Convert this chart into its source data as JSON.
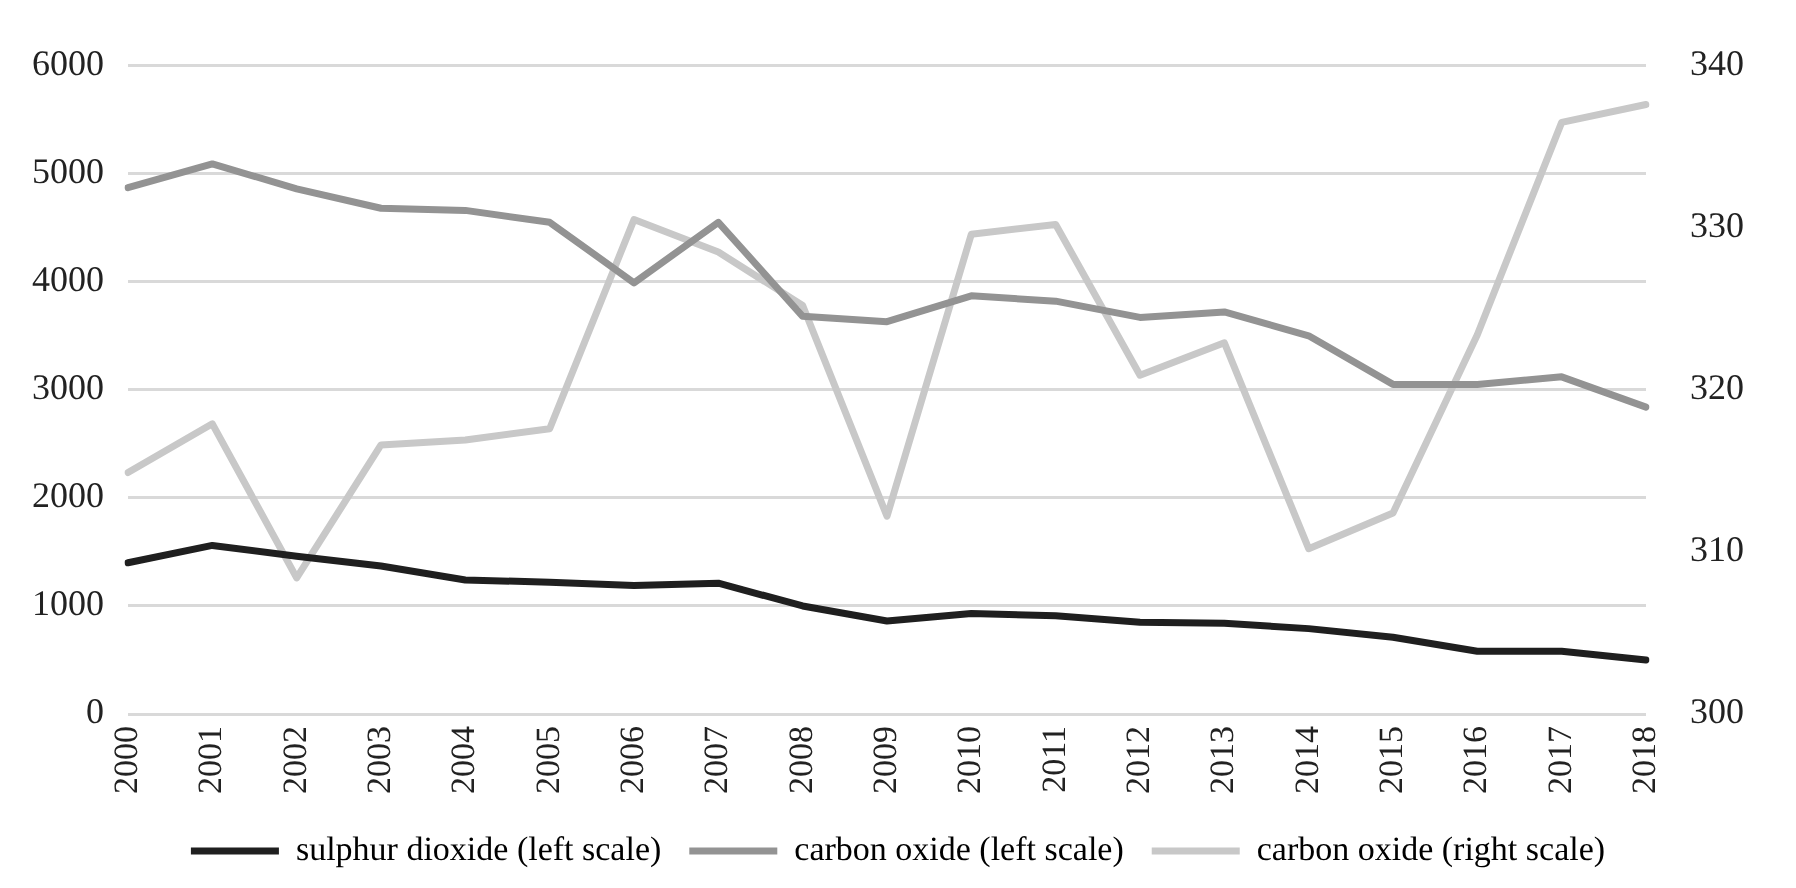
{
  "chart_data": {
    "type": "line",
    "categories": [
      "2000",
      "2001",
      "2002",
      "2003",
      "2004",
      "2005",
      "2006",
      "2007",
      "2008",
      "2009",
      "2010",
      "2011",
      "2012",
      "2013",
      "2014",
      "2015",
      "2016",
      "2017",
      "2018"
    ],
    "series": [
      {
        "name": "sulphur dioxide (left scale)",
        "color": "#1f1f1f",
        "values": [
          1400,
          1560,
          1460,
          1370,
          1240,
          1220,
          1190,
          1210,
          1000,
          860,
          930,
          910,
          850,
          840,
          790,
          710,
          580,
          580,
          500
        ]
      },
      {
        "name": "carbon oxide (left scale)",
        "color": "#939393",
        "values": [
          4870,
          5090,
          4860,
          4680,
          4660,
          4550,
          3990,
          4550,
          3680,
          3630,
          3870,
          3820,
          3670,
          3720,
          3500,
          3050,
          3050,
          3120,
          2840
        ]
      },
      {
        "name": "carbon oxide (right scale)",
        "color": "#c8c8c8",
        "axis": "y2",
        "values": [
          314.9,
          317.9,
          308.4,
          316.6,
          316.9,
          317.6,
          330.5,
          328.5,
          325.2,
          312.2,
          329.6,
          330.2,
          320.9,
          322.9,
          310.2,
          312.4,
          323.4,
          336.5,
          337.6
        ]
      }
    ],
    "ylim": [
      0,
      6000
    ],
    "yticks": [
      0,
      1000,
      2000,
      3000,
      4000,
      5000,
      6000
    ],
    "y2lim": [
      300,
      340
    ],
    "y2ticks": [
      300,
      310,
      320,
      330,
      340
    ],
    "grid": "y",
    "legend": "bottom",
    "marker": "none",
    "line_style": "solid"
  }
}
